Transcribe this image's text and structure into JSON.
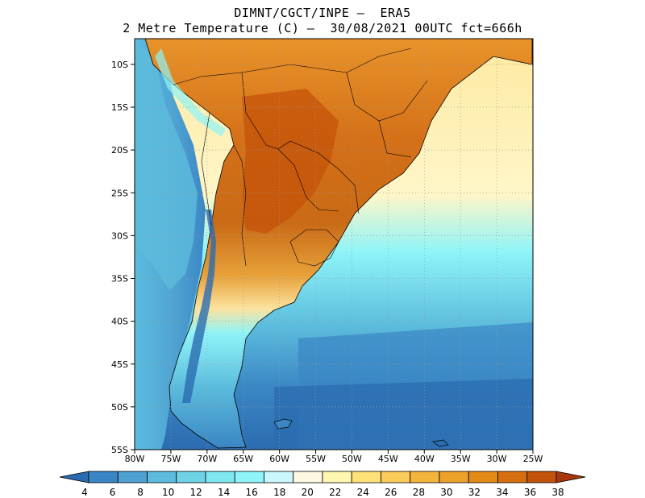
{
  "header": {
    "line1": "DIMNT/CGCT/INPE –  ERA5",
    "line2": "2 Metre Temperature (C) –  30/08/2021 00UTC fct=666h"
  },
  "axes": {
    "lat_labels": [
      "10S",
      "15S",
      "20S",
      "25S",
      "30S",
      "35S",
      "40S",
      "45S",
      "50S",
      "55S"
    ],
    "lon_labels": [
      "80W",
      "75W",
      "70W",
      "65W",
      "60W",
      "55W",
      "50W",
      "45W",
      "40W",
      "35W",
      "30W",
      "25W"
    ]
  },
  "colorbar": {
    "labels": [
      "4",
      "6",
      "8",
      "10",
      "12",
      "14",
      "16",
      "18",
      "20",
      "22",
      "24",
      "26",
      "28",
      "30",
      "32",
      "34",
      "36",
      "38"
    ],
    "colors": [
      "#2b6cb0",
      "#3a86c4",
      "#4ea1d2",
      "#5cbcdd",
      "#6fd3e6",
      "#7ee6ef",
      "#8ff4f8",
      "#c9f7fb",
      "#fff8e1",
      "#fff6b0",
      "#ffe17a",
      "#fbcb5a",
      "#f3b53c",
      "#eca226",
      "#e38a16",
      "#d6700e",
      "#c4530a",
      "#a8380a"
    ]
  },
  "colors": {
    "ocean_south": "#2f6fae",
    "ocean_mid": "#4ea1d2",
    "ocean_light": "#8ff4f8",
    "land_hot": "#c96a16",
    "land_warm": "#f0a632",
    "coast": "#000000"
  }
}
